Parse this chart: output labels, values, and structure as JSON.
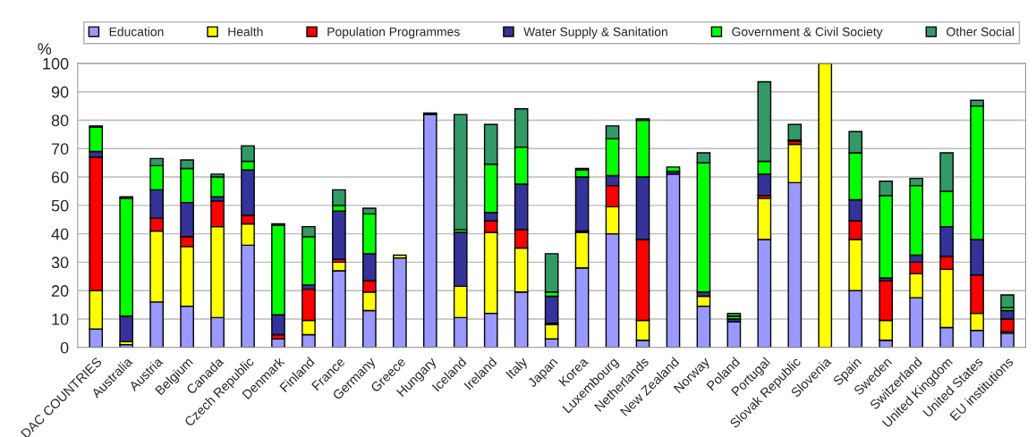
{
  "chart_data": {
    "type": "bar",
    "stacked": true,
    "ylabel": "%",
    "categories": [
      "DAC COUNTRIES",
      "Australia",
      "Austria",
      "Belgium",
      "Canada",
      "Czech Republic",
      "Denmark",
      "Finland",
      "France",
      "Germany",
      "Greece",
      "Hungary",
      "Iceland",
      "Ireland",
      "Italy",
      "Japan",
      "Korea",
      "Luxembourg",
      "Netherlands",
      "New Zealand",
      "Norway",
      "Poland",
      "Portugal",
      "Slovak Republic",
      "Slovenia",
      "Spain",
      "Sweden",
      "Switzerland",
      "United Kingdom",
      "United States",
      "EU institutions"
    ],
    "series": [
      {
        "name": "Education",
        "color": "#9999ff",
        "values": [
          6.5,
          1,
          16,
          14.5,
          10.5,
          36,
          3,
          4.5,
          27,
          13,
          31.5,
          82,
          10.5,
          12,
          19.5,
          3,
          28,
          40,
          2.5,
          61,
          14.5,
          9,
          38,
          58,
          0,
          20,
          2.5,
          17.5,
          7,
          6,
          5
        ]
      },
      {
        "name": "Health",
        "color": "#ffff00",
        "values": [
          13.5,
          1,
          25,
          21,
          32,
          7.5,
          0,
          5,
          3,
          6.5,
          1,
          0,
          11,
          28.5,
          15.5,
          5,
          12.5,
          9.5,
          7,
          0,
          3.5,
          0,
          14.5,
          13.5,
          100,
          18,
          7,
          8.5,
          20.5,
          6,
          0.5
        ]
      },
      {
        "name": "Population Programmes",
        "color": "#ff0000",
        "values": [
          47,
          0,
          4.5,
          3.5,
          9,
          3,
          1.5,
          11,
          1,
          4,
          0,
          0,
          0,
          4,
          6.5,
          0.5,
          0.5,
          7.5,
          28.5,
          0,
          0,
          0,
          1,
          1,
          0,
          6.5,
          14,
          4,
          4.5,
          13.5,
          4.5
        ]
      },
      {
        "name": "Water Supply & Sanitation",
        "color": "#333399",
        "values": [
          2,
          9,
          10,
          12,
          1.5,
          16,
          7,
          1.5,
          17,
          9.5,
          0,
          0.5,
          19,
          3,
          16,
          9.5,
          19,
          3.5,
          22,
          1,
          1.5,
          1,
          7.5,
          0.5,
          0,
          7.5,
          1,
          2.5,
          10.5,
          12.5,
          3
        ]
      },
      {
        "name": "Government & Civil Society",
        "color": "#00ff00",
        "values": [
          8.5,
          41.5,
          8.5,
          12,
          7,
          3,
          31.5,
          17,
          2,
          14,
          0,
          0,
          1,
          17,
          13,
          1.5,
          2.5,
          13,
          20,
          1.5,
          45.5,
          1,
          4.5,
          0,
          0,
          16.5,
          29,
          24.5,
          12.5,
          47,
          1
        ]
      },
      {
        "name": "Other Social",
        "color": "#339966",
        "values": [
          0.5,
          0.5,
          2.5,
          3,
          1,
          5.5,
          0.5,
          3.5,
          5.5,
          2,
          0,
          0,
          40.5,
          14,
          13.5,
          13.5,
          0.5,
          4.5,
          0.5,
          0,
          3.5,
          1,
          28,
          5.5,
          0,
          7.5,
          5,
          2.5,
          13.5,
          2,
          4.5
        ]
      }
    ],
    "ylim": [
      0,
      100
    ],
    "yticks": [
      0,
      10,
      20,
      30,
      40,
      50,
      60,
      70,
      80,
      90,
      100
    ],
    "grid": "y",
    "legend": "top"
  }
}
